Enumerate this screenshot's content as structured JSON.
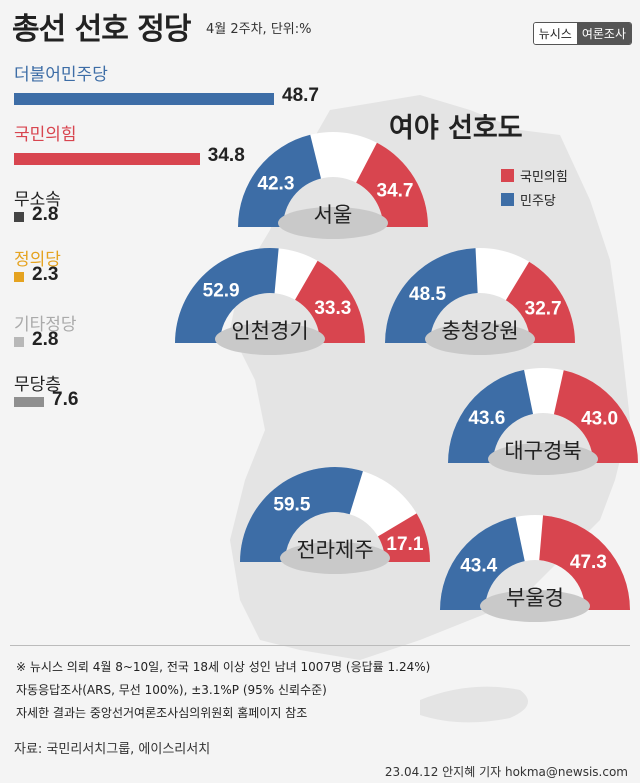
{
  "title": "총선 선호 정당",
  "subtitle": "4월 2주차, 단위:%",
  "brand": [
    "뉴시스",
    "여론조사"
  ],
  "colors": {
    "dem": "#3d6da6",
    "ppp": "#d8454f",
    "indep": "#444444",
    "justice": "#e5a320",
    "other": "#b8b8b8",
    "none": "#8f8f8f"
  },
  "chart_data": [
    {
      "type": "bar",
      "categories": [
        "더불어민주당",
        "국민의힘",
        "무소속",
        "정의당",
        "기타정당",
        "무당층"
      ],
      "values": [
        48.7,
        34.8,
        2.8,
        2.3,
        2.8,
        7.6
      ],
      "value_labels": [
        "48.7",
        "34.8",
        "2.8",
        "2.3",
        "2.8",
        "7.6"
      ]
    },
    {
      "type": "pie",
      "title": "여야 선호도",
      "legend": [
        "국민의힘",
        "민주당"
      ],
      "regions": [
        {
          "name": "서울",
          "dem": 42.3,
          "ppp": 34.7,
          "dem_label": "42.3",
          "ppp_label": "34.7"
        },
        {
          "name": "인천경기",
          "dem": 52.9,
          "ppp": 33.3,
          "dem_label": "52.9",
          "ppp_label": "33.3"
        },
        {
          "name": "충청강원",
          "dem": 48.5,
          "ppp": 32.7,
          "dem_label": "48.5",
          "ppp_label": "32.7"
        },
        {
          "name": "대구경북",
          "dem": 43.6,
          "ppp": 43.0,
          "dem_label": "43.6",
          "ppp_label": "43.0"
        },
        {
          "name": "전라제주",
          "dem": 59.5,
          "ppp": 17.1,
          "dem_label": "59.5",
          "ppp_label": "17.1"
        },
        {
          "name": "부울경",
          "dem": 43.4,
          "ppp": 47.3,
          "dem_label": "43.4",
          "ppp_label": "47.3"
        }
      ]
    }
  ],
  "notes": [
    "※ 뉴시스 의뢰 4월 8~10일, 전국 18세 이상 성인 남녀 1007명 (응답률 1.24%)",
    "자동응답조사(ARS, 무선 100%), ±3.1%P (95% 신뢰수준)",
    "자세한 결과는 중앙선거여론조사심의위원회 홈페이지 참조"
  ],
  "source": "자료: 국민리서치그룹, 에이스리서치",
  "credit": "23.04.12 안지혜 기자 hokma@newsis.com"
}
